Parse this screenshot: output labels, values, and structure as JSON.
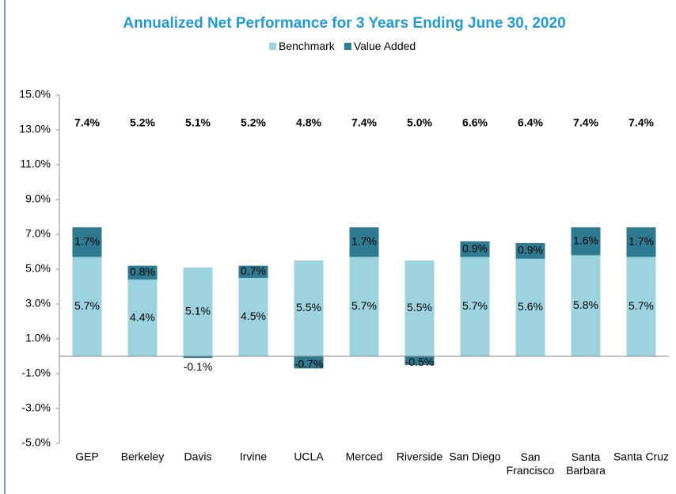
{
  "chart_data": {
    "type": "stacked_bar",
    "title": "Annualized Net Performance for 3 Years Ending June 30, 2020",
    "categories": [
      "GEP",
      "Berkeley",
      "Davis",
      "Irvine",
      "UCLA",
      "Merced",
      "Riverside",
      "San Diego",
      "San Francisco",
      "Santa Barbara",
      "Santa Cruz"
    ],
    "series": [
      {
        "name": "Benchmark",
        "color": "#9dd3df",
        "values": [
          5.7,
          4.4,
          5.1,
          4.5,
          5.5,
          5.7,
          5.5,
          5.7,
          5.6,
          5.8,
          5.7
        ],
        "value_labels": [
          "5.7%",
          "4.4%",
          "5.1%",
          "4.5%",
          "5.5%",
          "5.7%",
          "5.5%",
          "5.7%",
          "5.6%",
          "5.8%",
          "5.7%"
        ]
      },
      {
        "name": "Value Added",
        "color": "#2e7a91",
        "values": [
          1.7,
          0.8,
          -0.1,
          0.7,
          -0.7,
          1.7,
          -0.5,
          0.9,
          0.9,
          1.6,
          1.7
        ],
        "value_labels": [
          "1.7%",
          "0.8%",
          "-0.1%",
          "0.7%",
          "-0.7%",
          "1.7%",
          "-0.5%",
          "0.9%",
          "0.9%",
          "1.6%",
          "1.7%"
        ]
      }
    ],
    "totals": {
      "values": [
        7.4,
        5.2,
        5.1,
        5.2,
        4.8,
        7.4,
        5.0,
        6.6,
        6.4,
        7.4,
        7.4
      ],
      "value_labels": [
        "7.4%",
        "5.2%",
        "5.1%",
        "5.2%",
        "4.8%",
        "7.4%",
        "5.0%",
        "6.6%",
        "6.4%",
        "7.4%",
        "7.4%"
      ]
    },
    "ylim": [
      -5,
      15
    ],
    "yticks": [
      {
        "value": -5,
        "label": "-5.0%"
      },
      {
        "value": -3,
        "label": "-3.0%"
      },
      {
        "value": -1,
        "label": "-1.0%"
      },
      {
        "value": 1,
        "label": "1.0%"
      },
      {
        "value": 3,
        "label": "3.0%"
      },
      {
        "value": 5,
        "label": "5.0%"
      },
      {
        "value": 7,
        "label": "7.0%"
      },
      {
        "value": 9,
        "label": "9.0%"
      },
      {
        "value": 11,
        "label": "11.0%"
      },
      {
        "value": 13,
        "label": "13.0%"
      },
      {
        "value": 15,
        "label": "15.0%"
      }
    ],
    "legend": "top",
    "grid": false
  }
}
